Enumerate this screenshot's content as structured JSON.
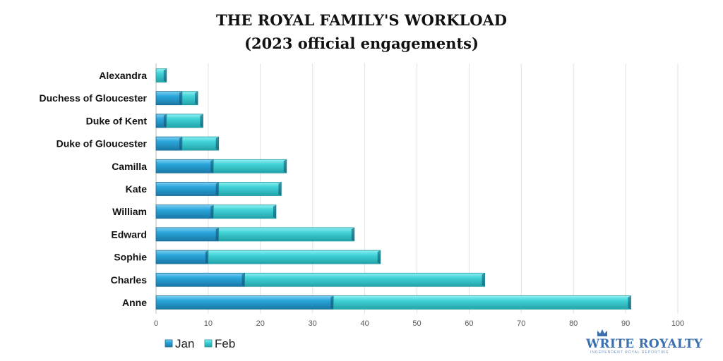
{
  "chart_data": {
    "type": "bar",
    "orientation": "horizontal",
    "stacked": true,
    "title": "THE ROYAL FAMILY'S WORKLOAD",
    "subtitle": "(2023 official engagements)",
    "categories": [
      "Alexandra",
      "Duchess of Gloucester",
      "Duke of Kent",
      "Duke of Gloucester",
      "Camilla",
      "Kate",
      "William",
      "Edward",
      "Sophie",
      "Charles",
      "Anne"
    ],
    "series": [
      {
        "name": "Jan",
        "values": [
          0,
          5,
          2,
          5,
          11,
          12,
          11,
          12,
          10,
          17,
          34
        ],
        "color": "#29a3da"
      },
      {
        "name": "Feb",
        "values": [
          2,
          3,
          7,
          7,
          14,
          12,
          12,
          26,
          33,
          46,
          57
        ],
        "color": "#3fd0d6"
      }
    ],
    "xlim": [
      0,
      100
    ],
    "xticks": [
      0,
      10,
      20,
      30,
      40,
      50,
      60,
      70,
      80,
      90,
      100
    ],
    "grid": true,
    "legend_position": "bottom-left"
  },
  "branding": {
    "name": "WRITE ROYALTY",
    "tagline": "INDEPENDENT ROYAL REPORTING",
    "color": "#3a6fb0"
  }
}
